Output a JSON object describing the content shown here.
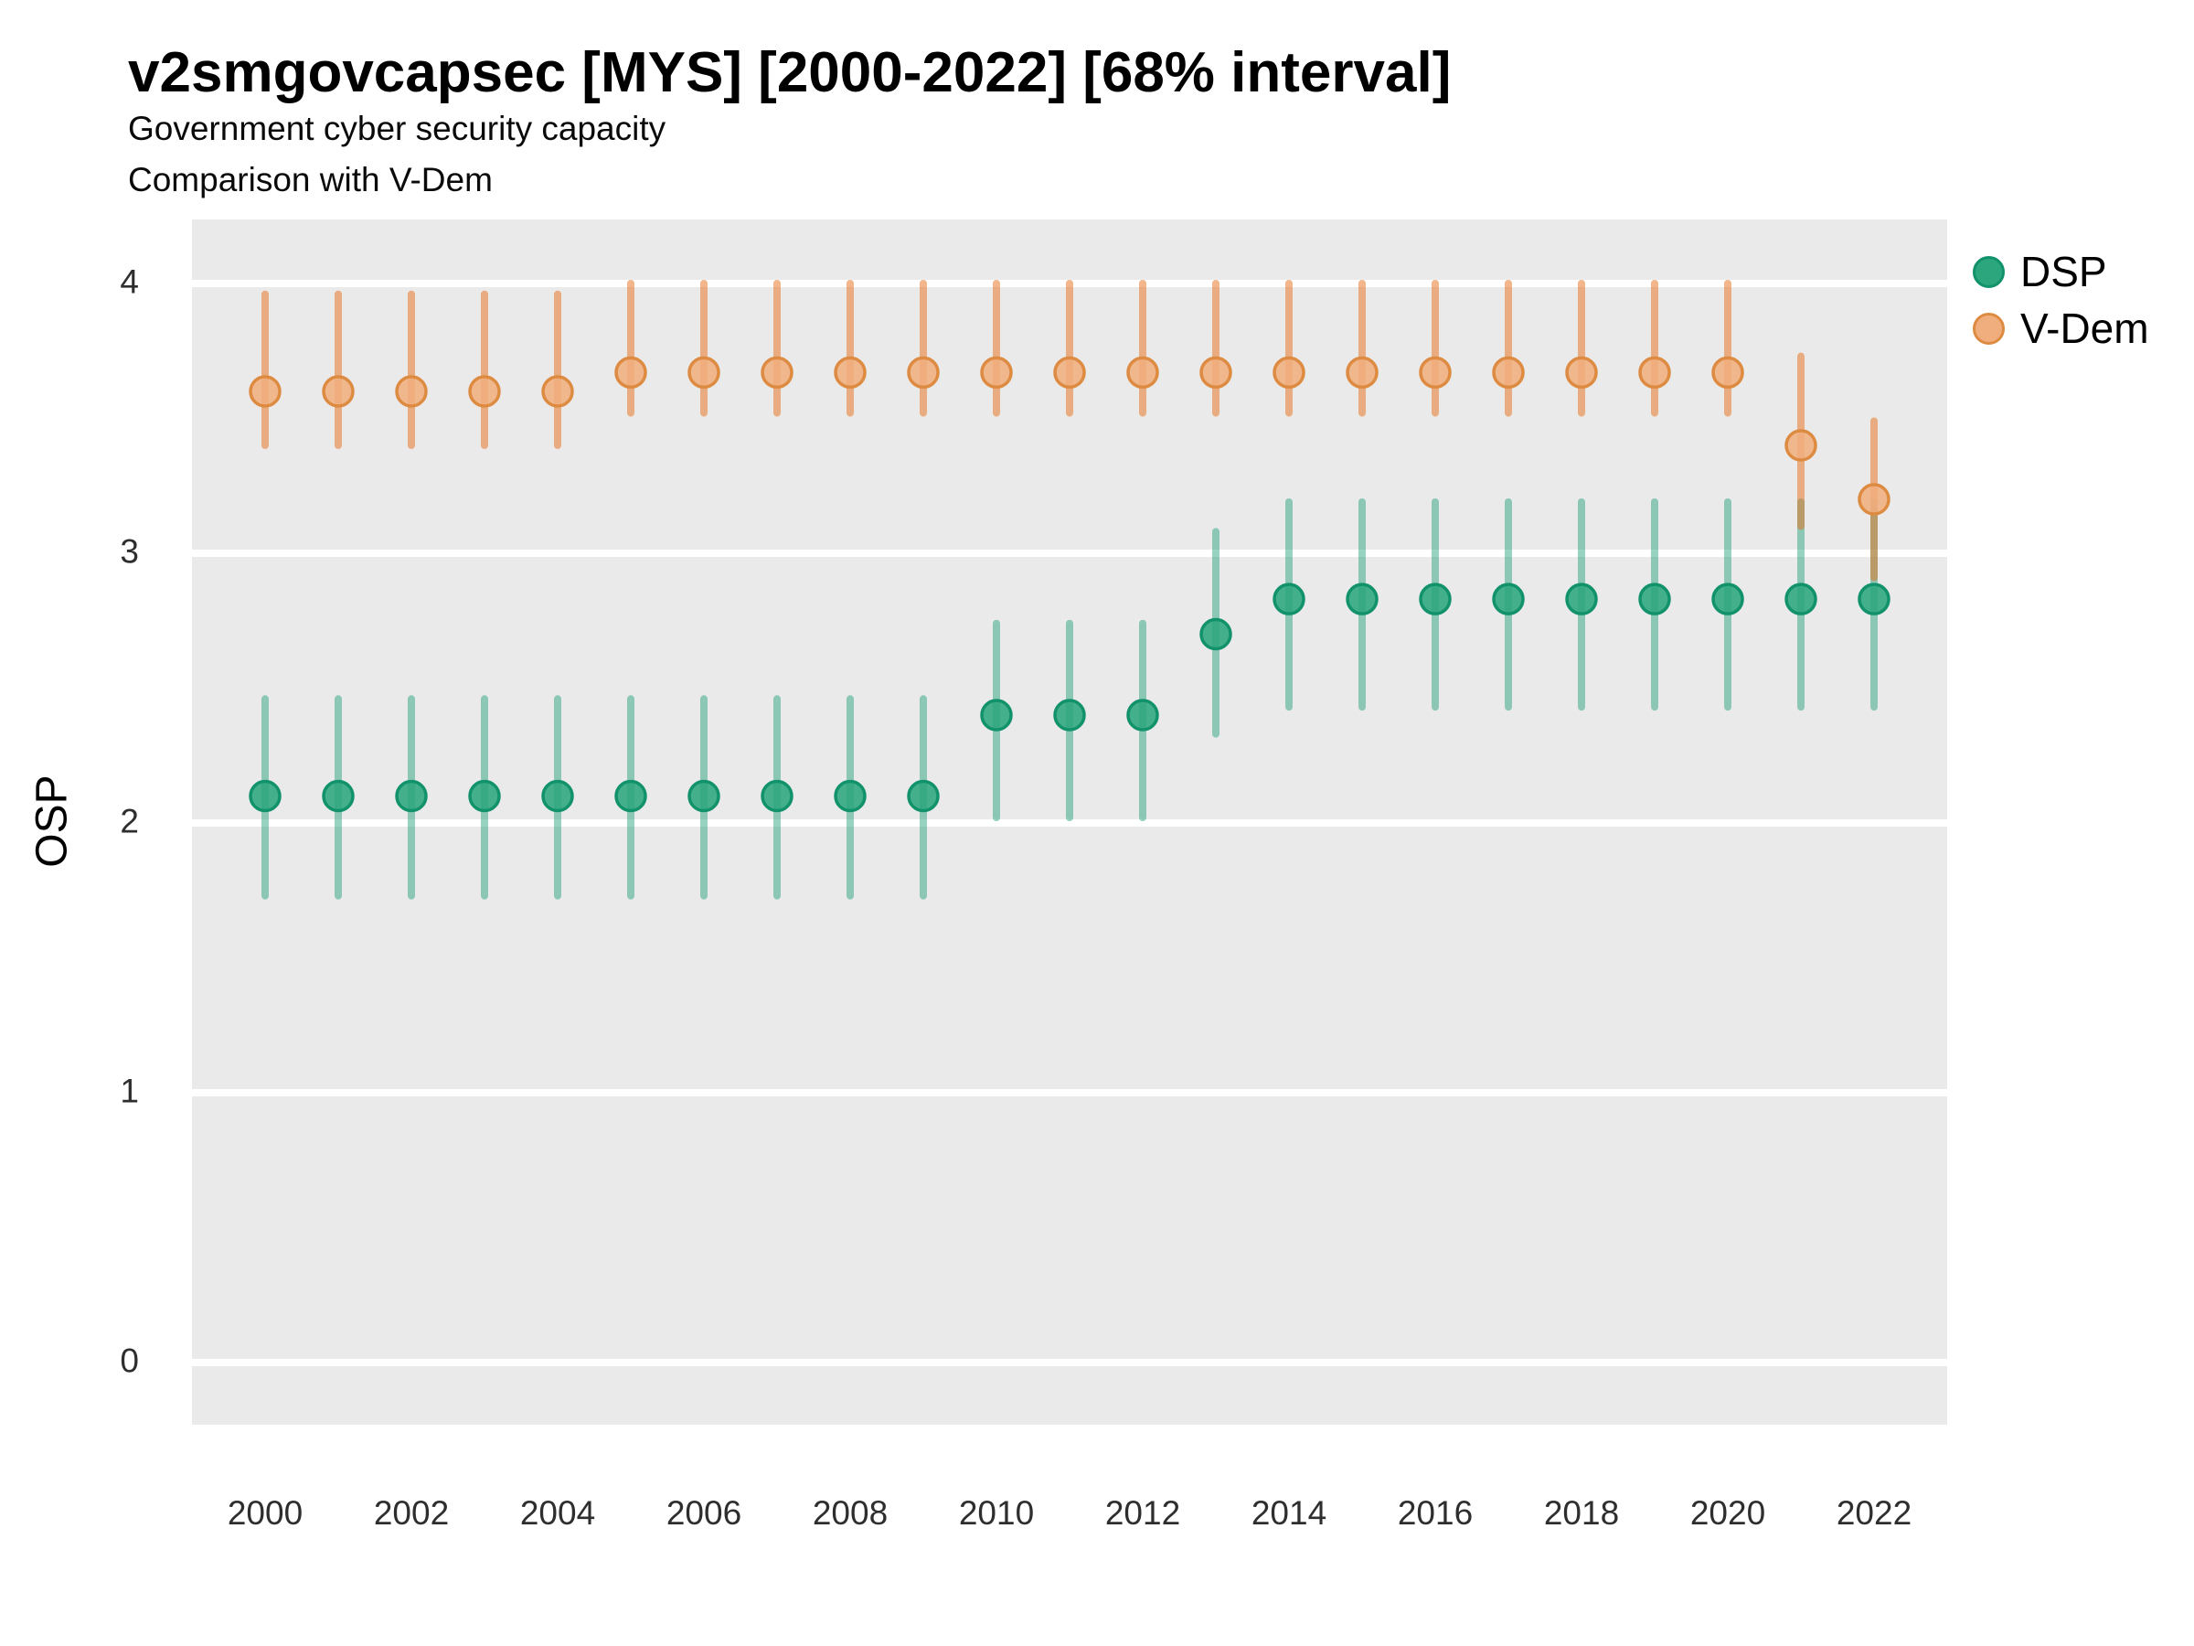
{
  "header": {
    "title": "v2smgovcapsec [MYS] [2000-2022] [68% interval]",
    "subtitle1": "Government cyber security capacity",
    "subtitle2": "Comparison with V-Dem"
  },
  "y_axis_title": "OSP",
  "legend": {
    "entries": [
      {
        "label": "DSP",
        "swatch_fill": "#2ba67d",
        "swatch_stroke": "#12926b"
      },
      {
        "label": "V-Dem",
        "swatch_fill": "#f0ae7e",
        "swatch_stroke": "#de8b42"
      }
    ]
  },
  "chart_data": {
    "type": "pointrange",
    "title": "v2smgovcapsec [MYS] [2000-2022] [68% interval]",
    "xlabel": "",
    "ylabel": "OSP",
    "interval_label": "68% interval",
    "country": "MYS",
    "grid": "major-horizontal-white",
    "panel_bg": "#eaeaea",
    "legend_position": "right-top",
    "ylim": [
      -0.23,
      4.24
    ],
    "yticks": [
      0,
      1,
      2,
      3,
      4
    ],
    "xticks": [
      2000,
      2002,
      2004,
      2006,
      2008,
      2010,
      2012,
      2014,
      2016,
      2018,
      2020,
      2022
    ],
    "x": [
      2000,
      2001,
      2002,
      2003,
      2004,
      2005,
      2006,
      2007,
      2008,
      2009,
      2010,
      2011,
      2012,
      2013,
      2014,
      2015,
      2016,
      2017,
      2018,
      2019,
      2020,
      2021,
      2022
    ],
    "series": [
      {
        "name": "DSP",
        "point_color": "#2ba67d",
        "point_stroke": "#12926b",
        "bar_color": "rgba(27,158,119,0.45)",
        "values": [
          2.1,
          2.1,
          2.1,
          2.1,
          2.1,
          2.1,
          2.1,
          2.1,
          2.1,
          2.1,
          2.4,
          2.4,
          2.4,
          2.7,
          2.83,
          2.83,
          2.83,
          2.83,
          2.83,
          2.83,
          2.83,
          2.83,
          2.83
        ],
        "lo": [
          1.73,
          1.73,
          1.73,
          1.73,
          1.73,
          1.73,
          1.73,
          1.73,
          1.73,
          1.73,
          2.02,
          2.02,
          2.02,
          2.33,
          2.43,
          2.43,
          2.43,
          2.43,
          2.43,
          2.43,
          2.43,
          2.43,
          2.43
        ],
        "hi": [
          2.46,
          2.46,
          2.46,
          2.46,
          2.46,
          2.46,
          2.46,
          2.46,
          2.46,
          2.46,
          2.74,
          2.74,
          2.74,
          3.08,
          3.19,
          3.19,
          3.19,
          3.19,
          3.19,
          3.19,
          3.19,
          3.19,
          3.19
        ]
      },
      {
        "name": "V-Dem",
        "point_color": "#f0ae7e",
        "point_stroke": "#de8b42",
        "bar_color": "rgba(232,110,24,0.5)",
        "values": [
          3.6,
          3.6,
          3.6,
          3.6,
          3.6,
          3.67,
          3.67,
          3.67,
          3.67,
          3.67,
          3.67,
          3.67,
          3.67,
          3.67,
          3.67,
          3.67,
          3.67,
          3.67,
          3.67,
          3.67,
          3.67,
          3.4,
          3.2
        ],
        "lo": [
          3.4,
          3.4,
          3.4,
          3.4,
          3.4,
          3.52,
          3.52,
          3.52,
          3.52,
          3.52,
          3.52,
          3.52,
          3.52,
          3.52,
          3.52,
          3.52,
          3.52,
          3.52,
          3.52,
          3.52,
          3.52,
          3.1,
          2.91
        ],
        "hi": [
          3.96,
          3.96,
          3.96,
          3.96,
          3.96,
          4.0,
          4.0,
          4.0,
          4.0,
          4.0,
          4.0,
          4.0,
          4.0,
          4.0,
          4.0,
          4.0,
          4.0,
          4.0,
          4.0,
          4.0,
          4.0,
          3.73,
          3.49
        ]
      }
    ]
  }
}
